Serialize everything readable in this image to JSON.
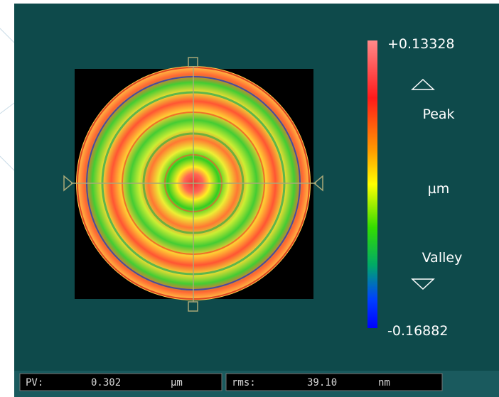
{
  "colorbar": {
    "max_label": "+0.13328",
    "peak_label": "Peak",
    "unit": "µm",
    "valley_label": "Valley",
    "min_label": "-0.16882"
  },
  "status_bar": {
    "pv": {
      "label": "PV:",
      "value": "0.302",
      "unit": "µm"
    },
    "rms": {
      "label": "rms:",
      "value": "39.10",
      "unit": "nm"
    }
  }
}
